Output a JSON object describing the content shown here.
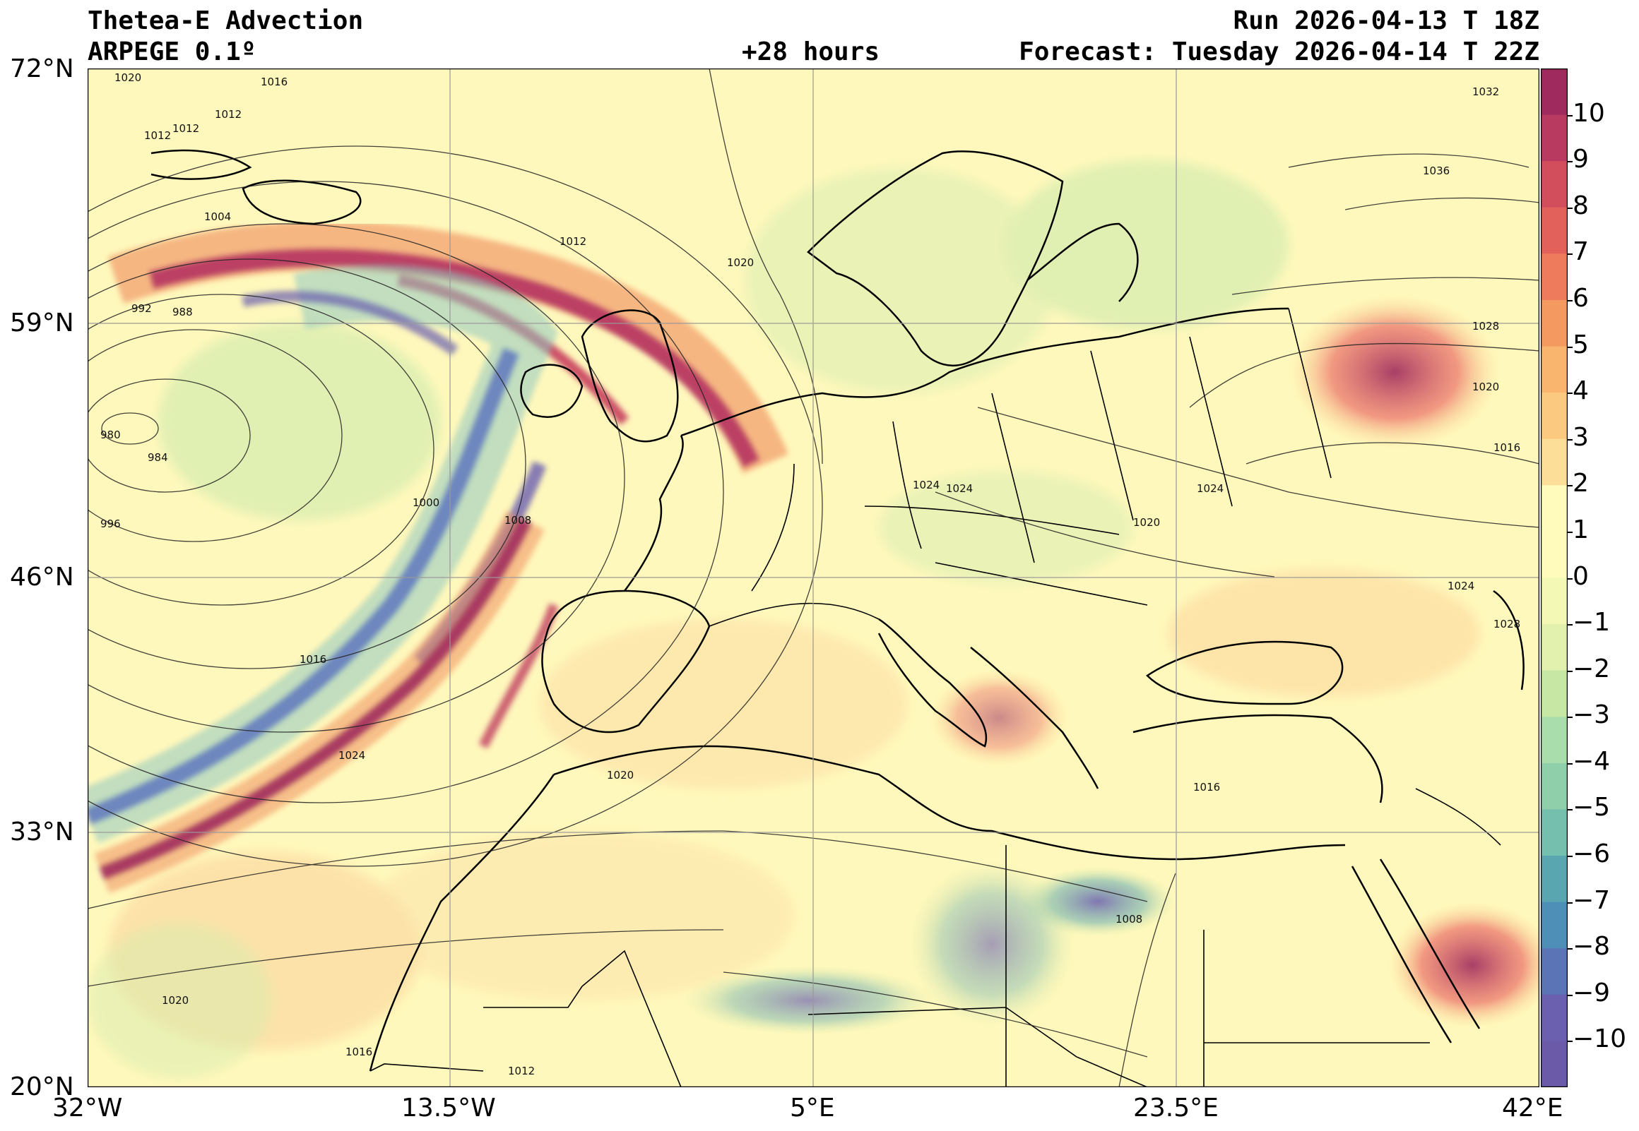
{
  "header": {
    "title": "Thetea-E Advection",
    "model": "ARPEGE 0.1º",
    "lead_time": "+28 hours",
    "run": "Run 2026-04-13 T 18Z",
    "forecast": "Forecast: Tuesday 2026-04-14 T 22Z"
  },
  "axes": {
    "lon_labels": [
      "32°W",
      "13.5°W",
      "5°E",
      "23.5°E",
      "42°E"
    ],
    "lat_labels": [
      "72°N",
      "59°N",
      "46°N",
      "33°N",
      "20°N"
    ]
  },
  "colorbar": {
    "labels": [
      "10",
      "9",
      "8",
      "7",
      "6",
      "5",
      "4",
      "3",
      "2",
      "1",
      "0",
      "−1",
      "−2",
      "−3",
      "−4",
      "−5",
      "−6",
      "−7",
      "−8",
      "−9",
      "−10"
    ],
    "range": [
      -11,
      11
    ],
    "colors": {
      "strong_positive": "#9e2a5e",
      "positive": "#e8595a",
      "weak_positive": "#fdd38a",
      "neutral": "#fffbbd",
      "weak_negative": "#c6e8a4",
      "negative": "#5aa6b0",
      "strong_negative": "#6b5fb0"
    }
  },
  "isobar_labels": [
    "1020",
    "1016",
    "1012",
    "1012",
    "1012",
    "1004",
    "992",
    "988",
    "980",
    "984",
    "996",
    "1000",
    "1008",
    "1012",
    "1020",
    "1016",
    "1024",
    "1020",
    "1020",
    "1016",
    "1012",
    "1008",
    "1016",
    "1024",
    "1024",
    "1020",
    "1024",
    "1032",
    "1036",
    "1028",
    "1020",
    "1016",
    "1024",
    "1028"
  ]
}
